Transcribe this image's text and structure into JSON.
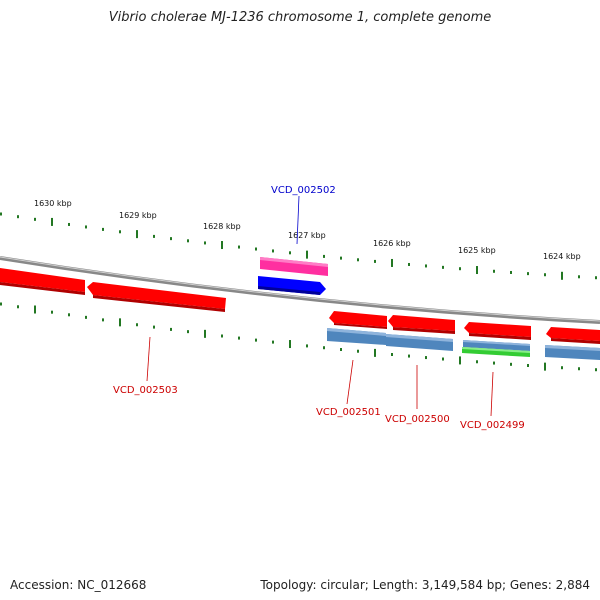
{
  "title": "Vibrio cholerae MJ-1236 chromosome 1, complete genome",
  "ruler": [
    {
      "label": "1630 kbp"
    },
    {
      "label": "1629 kbp"
    },
    {
      "label": "1628 kbp"
    },
    {
      "label": "1627 kbp"
    },
    {
      "label": "1626 kbp"
    },
    {
      "label": "1625 kbp"
    },
    {
      "label": "1624 kbp"
    }
  ],
  "genes": [
    {
      "label": "VCD_002502",
      "color": "#0000cc"
    },
    {
      "label": "VCD_002503",
      "color": "#cc0000"
    },
    {
      "label": "VCD_002501",
      "color": "#cc0000"
    },
    {
      "label": "VCD_002500",
      "color": "#cc0000"
    },
    {
      "label": "VCD_002499",
      "color": "#cc0000"
    }
  ],
  "colors": {
    "cds_red": "#ff0000",
    "feature_pink": "#ff2fa0",
    "feature_blue": "#0000ff",
    "feature_steelblue": "#4f86bd",
    "feature_green": "#33cc33",
    "tick_green": "#227722",
    "backbone": "#888888"
  },
  "footer": {
    "accession": "Accession: NC_012668",
    "topology": "Topology: circular; Length: 3,149,584 bp; Genes: 2,884"
  }
}
